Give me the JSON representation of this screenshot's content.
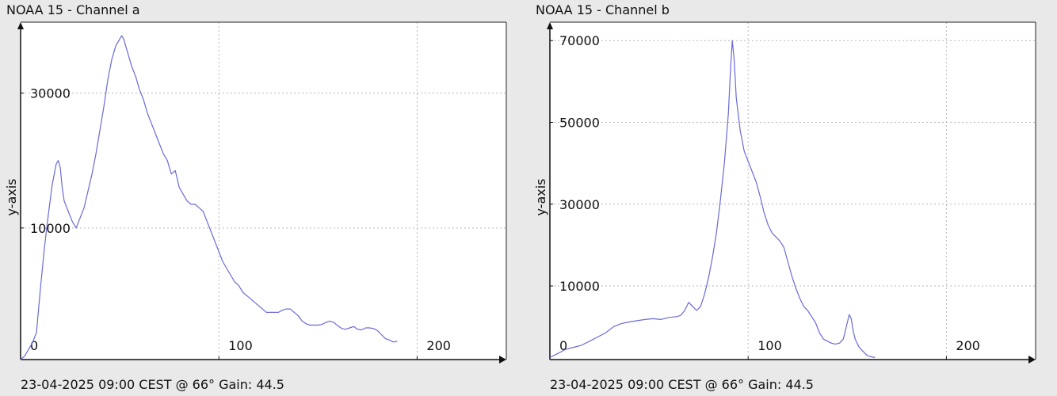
{
  "panels": [
    {
      "title": "NOAA 15 - Channel a",
      "footer": "23-04-2025 09:00 CEST @ 66° Gain: 44.5",
      "chart": {
        "type": "line",
        "xlabel": "",
        "ylabel": "y-axis",
        "xlim": [
          0,
          245
        ],
        "ylim": [
          -9500,
          40500
        ],
        "x_ticks": [
          0,
          100,
          200
        ],
        "y_ticks": [
          10000,
          30000
        ],
        "grid": true,
        "line_color": "#6a6ad8",
        "points": [
          [
            0,
            -9500
          ],
          [
            2,
            -9000
          ],
          [
            4,
            -8000
          ],
          [
            6,
            -7000
          ],
          [
            8,
            -5500
          ],
          [
            10,
            1000
          ],
          [
            12,
            7000
          ],
          [
            14,
            12000
          ],
          [
            16,
            16500
          ],
          [
            18,
            19500
          ],
          [
            19,
            20000
          ],
          [
            20,
            19000
          ],
          [
            21,
            16000
          ],
          [
            22,
            14000
          ],
          [
            24,
            12500
          ],
          [
            26,
            11000
          ],
          [
            28,
            10000
          ],
          [
            30,
            11500
          ],
          [
            32,
            13000
          ],
          [
            34,
            15500
          ],
          [
            36,
            18000
          ],
          [
            38,
            21000
          ],
          [
            40,
            24500
          ],
          [
            42,
            28000
          ],
          [
            44,
            32000
          ],
          [
            46,
            35000
          ],
          [
            48,
            37000
          ],
          [
            50,
            38000
          ],
          [
            51,
            38500
          ],
          [
            52,
            38000
          ],
          [
            54,
            36000
          ],
          [
            56,
            34000
          ],
          [
            58,
            32500
          ],
          [
            60,
            30500
          ],
          [
            62,
            29000
          ],
          [
            64,
            27000
          ],
          [
            66,
            25500
          ],
          [
            68,
            24000
          ],
          [
            70,
            22500
          ],
          [
            72,
            21000
          ],
          [
            74,
            20000
          ],
          [
            76,
            18000
          ],
          [
            78,
            18500
          ],
          [
            80,
            16000
          ],
          [
            82,
            15000
          ],
          [
            84,
            14000
          ],
          [
            86,
            13500
          ],
          [
            88,
            13500
          ],
          [
            90,
            13000
          ],
          [
            92,
            12500
          ],
          [
            94,
            11000
          ],
          [
            96,
            9500
          ],
          [
            98,
            8000
          ],
          [
            100,
            6500
          ],
          [
            102,
            5000
          ],
          [
            104,
            4000
          ],
          [
            106,
            3000
          ],
          [
            108,
            2000
          ],
          [
            110,
            1500
          ],
          [
            112,
            500
          ],
          [
            114,
            0
          ],
          [
            116,
            -500
          ],
          [
            118,
            -1000
          ],
          [
            120,
            -1500
          ],
          [
            122,
            -2000
          ],
          [
            124,
            -2500
          ],
          [
            126,
            -2500
          ],
          [
            128,
            -2500
          ],
          [
            130,
            -2500
          ],
          [
            132,
            -2200
          ],
          [
            134,
            -2000
          ],
          [
            136,
            -2000
          ],
          [
            138,
            -2500
          ],
          [
            140,
            -3000
          ],
          [
            142,
            -3800
          ],
          [
            144,
            -4200
          ],
          [
            146,
            -4400
          ],
          [
            148,
            -4400
          ],
          [
            150,
            -4400
          ],
          [
            152,
            -4300
          ],
          [
            154,
            -4000
          ],
          [
            156,
            -3800
          ],
          [
            158,
            -4000
          ],
          [
            160,
            -4500
          ],
          [
            162,
            -4900
          ],
          [
            164,
            -5000
          ],
          [
            166,
            -4800
          ],
          [
            168,
            -4600
          ],
          [
            170,
            -5000
          ],
          [
            172,
            -5100
          ],
          [
            174,
            -4800
          ],
          [
            176,
            -4800
          ],
          [
            178,
            -4900
          ],
          [
            180,
            -5200
          ],
          [
            182,
            -5800
          ],
          [
            184,
            -6400
          ],
          [
            186,
            -6600
          ],
          [
            188,
            -6900
          ],
          [
            190,
            -6800
          ]
        ]
      }
    },
    {
      "title": "NOAA 15 - Channel b",
      "footer": "23-04-2025 09:00 CEST @ 66° Gain: 44.5",
      "chart": {
        "type": "line",
        "xlabel": "",
        "ylabel": "y-axis",
        "xlim": [
          0,
          245
        ],
        "ylim": [
          -8000,
          74500
        ],
        "x_ticks": [
          0,
          100,
          200
        ],
        "y_ticks": [
          10000,
          30000,
          50000,
          70000
        ],
        "grid": true,
        "line_color": "#6a6ad8",
        "points": [
          [
            0,
            -7500
          ],
          [
            4,
            -6500
          ],
          [
            8,
            -5500
          ],
          [
            12,
            -5000
          ],
          [
            16,
            -4500
          ],
          [
            20,
            -3500
          ],
          [
            24,
            -2500
          ],
          [
            28,
            -1500
          ],
          [
            32,
            0
          ],
          [
            36,
            800
          ],
          [
            40,
            1200
          ],
          [
            44,
            1500
          ],
          [
            48,
            1800
          ],
          [
            52,
            2000
          ],
          [
            56,
            1800
          ],
          [
            60,
            2300
          ],
          [
            64,
            2500
          ],
          [
            66,
            2800
          ],
          [
            68,
            4000
          ],
          [
            70,
            6000
          ],
          [
            72,
            5000
          ],
          [
            74,
            4000
          ],
          [
            76,
            5000
          ],
          [
            78,
            8000
          ],
          [
            80,
            12000
          ],
          [
            82,
            17000
          ],
          [
            84,
            23000
          ],
          [
            86,
            31000
          ],
          [
            88,
            40000
          ],
          [
            90,
            52000
          ],
          [
            91,
            62000
          ],
          [
            92,
            70000
          ],
          [
            93,
            65000
          ],
          [
            94,
            56000
          ],
          [
            96,
            48000
          ],
          [
            98,
            43000
          ],
          [
            100,
            40500
          ],
          [
            102,
            38000
          ],
          [
            104,
            35500
          ],
          [
            106,
            32000
          ],
          [
            108,
            28000
          ],
          [
            110,
            25000
          ],
          [
            112,
            23000
          ],
          [
            114,
            22000
          ],
          [
            116,
            21000
          ],
          [
            118,
            19500
          ],
          [
            120,
            16000
          ],
          [
            122,
            12500
          ],
          [
            124,
            9500
          ],
          [
            126,
            7000
          ],
          [
            128,
            5000
          ],
          [
            130,
            4000
          ],
          [
            132,
            2500
          ],
          [
            134,
            1000
          ],
          [
            136,
            -1500
          ],
          [
            138,
            -3000
          ],
          [
            140,
            -3500
          ],
          [
            142,
            -4000
          ],
          [
            144,
            -4200
          ],
          [
            146,
            -4000
          ],
          [
            148,
            -3000
          ],
          [
            149,
            -1000
          ],
          [
            150,
            1000
          ],
          [
            151,
            3000
          ],
          [
            152,
            2000
          ],
          [
            153,
            -1000
          ],
          [
            154,
            -3000
          ],
          [
            156,
            -5000
          ],
          [
            158,
            -6000
          ],
          [
            160,
            -7000
          ],
          [
            162,
            -7300
          ],
          [
            164,
            -7500
          ]
        ]
      }
    }
  ]
}
